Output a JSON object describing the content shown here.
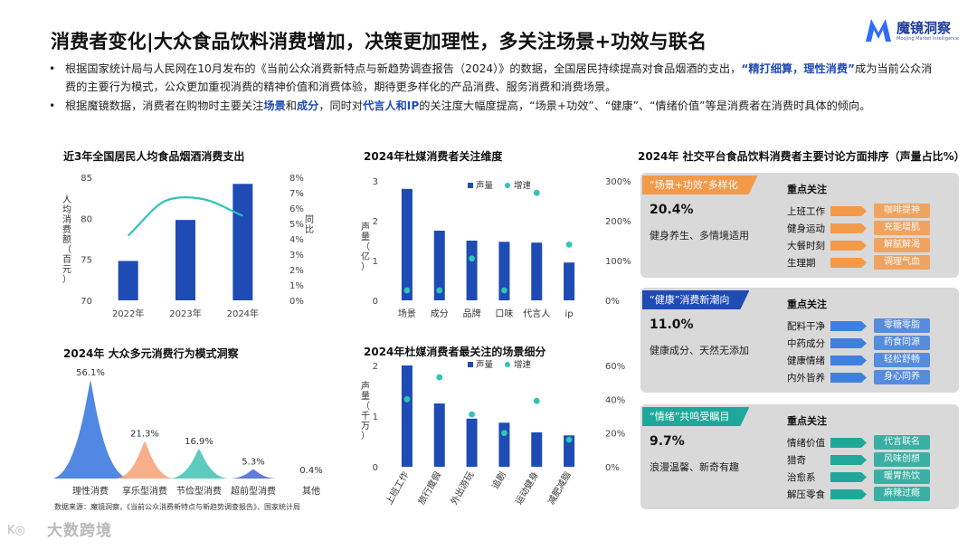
{
  "header": {
    "title": "消费者变化|大众食品饮料消费增加，决策更加理性，多关注场景+功效与联名",
    "logo_name": "魔镜洞察",
    "logo_sub": "Moojing Market Intelligence"
  },
  "bullets": [
    {
      "parts": [
        {
          "t": "根据国家统计局与人民网在10月发布的《当前公众消费新特点与新趋势调查报告（2024）》的数据，全国居民持续提高对食品烟酒的支出，",
          "hl": false
        },
        {
          "t": "“精打细算，理性消费”",
          "hl": true
        },
        {
          "t": "成为当前公众消费的主要行为模式，公众更加重视消费的精神价值和消费体验，期待更多样化的产品消费、服务消费和消费场景。",
          "hl": false
        }
      ]
    },
    {
      "parts": [
        {
          "t": "根据魔镜数据，消费者在购物时主要关注",
          "hl": false
        },
        {
          "t": "场景",
          "hl": true
        },
        {
          "t": "和",
          "hl": false
        },
        {
          "t": "成分",
          "hl": true
        },
        {
          "t": "，同时对",
          "hl": false
        },
        {
          "t": "代言人和IP",
          "hl": true
        },
        {
          "t": "的关注度大幅度提高，“场景+功效”、“健康”、“情绪价值”等是消费者在消费时具体的倾向。",
          "hl": false
        }
      ]
    }
  ],
  "source": "数据来源：魔镜洞察，《当前公众消费新特点与新趋势调查报告》、国家统计局",
  "watermark": "大数跨境",
  "chart_data": [
    {
      "type": "bar",
      "title": "近3年全国居民人均食品烟酒消费支出",
      "categories": [
        "2022年",
        "2023年",
        "2024年"
      ],
      "values": [
        74.8,
        79.8,
        84.2
      ],
      "ylim": [
        70,
        85
      ],
      "yticks": [
        "70",
        "75",
        "80",
        "85"
      ],
      "ylabel": "人均消费额（百元）",
      "y2label": "同比",
      "y2ticks": [
        "0%",
        "1%",
        "2%",
        "3%",
        "4%",
        "5%",
        "6%",
        "7%",
        "8%"
      ],
      "y2lim": [
        0,
        8
      ],
      "growth_curve": [
        4.2,
        6.7,
        5.5
      ],
      "bar_color": "#1f4bb5",
      "line_color": "#2ec4b6"
    },
    {
      "type": "bar",
      "title": "2024年杜媒消费者关注维度",
      "categories": [
        "场景",
        "成分",
        "品牌",
        "口味",
        "代言人",
        "ip"
      ],
      "series": [
        {
          "name": "声量",
          "values": [
            2.8,
            1.75,
            1.5,
            1.47,
            1.45,
            0.95
          ]
        },
        {
          "name": "增速",
          "values": [
            25,
            25,
            105,
            25,
            270,
            140
          ]
        }
      ],
      "ylim": [
        0,
        3
      ],
      "yticks": [
        "0",
        "1",
        "2",
        "3"
      ],
      "ylabel": "声量（亿）",
      "y2lim": [
        0,
        300
      ],
      "y2ticks": [
        "0%",
        "100%",
        "200%",
        "300%"
      ],
      "bar_color": "#1f4bb5",
      "dot_color": "#2ec4b6"
    },
    {
      "type": "area",
      "title": "2024年 大众多元消费行为模式洞察",
      "categories": [
        "理性消费",
        "享乐型消费",
        "节俭型消费",
        "超前型消费",
        "其他"
      ],
      "values": [
        56.1,
        21.3,
        16.9,
        5.3,
        0.4
      ],
      "labels": [
        "56.1%",
        "21.3%",
        "16.9%",
        "5.3%",
        "0.4%"
      ],
      "colors": [
        "#3d7be0",
        "#f5a67c",
        "#4cc7b5",
        "#4d6fd6",
        "#cccccc"
      ]
    },
    {
      "type": "bar",
      "title": "2024年杜媒消费者最关注的场景细分",
      "categories": [
        "上班工作",
        "旅行度假",
        "外出游玩",
        "追剧",
        "运动健身",
        "减肥减脂"
      ],
      "series": [
        {
          "name": "声量",
          "values": [
            2.0,
            1.25,
            0.95,
            0.87,
            0.68,
            0.62
          ]
        },
        {
          "name": "增速",
          "values": [
            40,
            53,
            31,
            20,
            39,
            16
          ]
        }
      ],
      "ylim": [
        0,
        2
      ],
      "yticks": [
        "0",
        "1",
        "2"
      ],
      "ylabel": "声量（千万）",
      "y2lim": [
        0,
        60
      ],
      "y2ticks": [
        "0%",
        "20%",
        "40%",
        "60%"
      ],
      "bar_color": "#1f4bb5",
      "dot_color": "#2ec4b6"
    }
  ],
  "social": {
    "title": "2024年 社交平台食品饮料消费者主要讨论方面排序（声量占比%）",
    "cards": [
      {
        "tag": "“场景+功效”多样化",
        "tag_color": "#f39a4a",
        "pct": "20.4%",
        "desc": "健身养生、多情境适用",
        "focus": "重点关注",
        "bar_color": "#f39a4a",
        "items": [
          {
            "label": "上班工作",
            "pill": "咖啡提神"
          },
          {
            "label": "健身运动",
            "pill": "充能增肌"
          },
          {
            "label": "大餐时刻",
            "pill": "解腻解渴"
          },
          {
            "label": "生理期",
            "pill": "调理气血"
          }
        ]
      },
      {
        "tag": "“健康”消费新潮向",
        "tag_color": "#1f4bb5",
        "pct": "11.0%",
        "desc": "健康成分、天然无添加",
        "focus": "重点关注",
        "bar_color": "#3f7fe0",
        "items": [
          {
            "label": "配料干净",
            "pill": "零糖零脂"
          },
          {
            "label": "中药成分",
            "pill": "药食同源"
          },
          {
            "label": "健康情绪",
            "pill": "轻松舒畅"
          },
          {
            "label": "内外皆养",
            "pill": "身心同养"
          }
        ]
      },
      {
        "tag": "“情绪”共鸣受瞩目",
        "tag_color": "#1fa89a",
        "pct": "9.7%",
        "desc": "浪漫温馨、新奇有趣",
        "focus": "重点关注",
        "bar_color": "#1fa89a",
        "items": [
          {
            "label": "情绪价值",
            "pill": "代言联名"
          },
          {
            "label": "猎奇",
            "pill": "风味创想"
          },
          {
            "label": "治愈系",
            "pill": "暖胃热饮"
          },
          {
            "label": "解压零食",
            "pill": "麻辣过瘾"
          }
        ]
      }
    ]
  }
}
